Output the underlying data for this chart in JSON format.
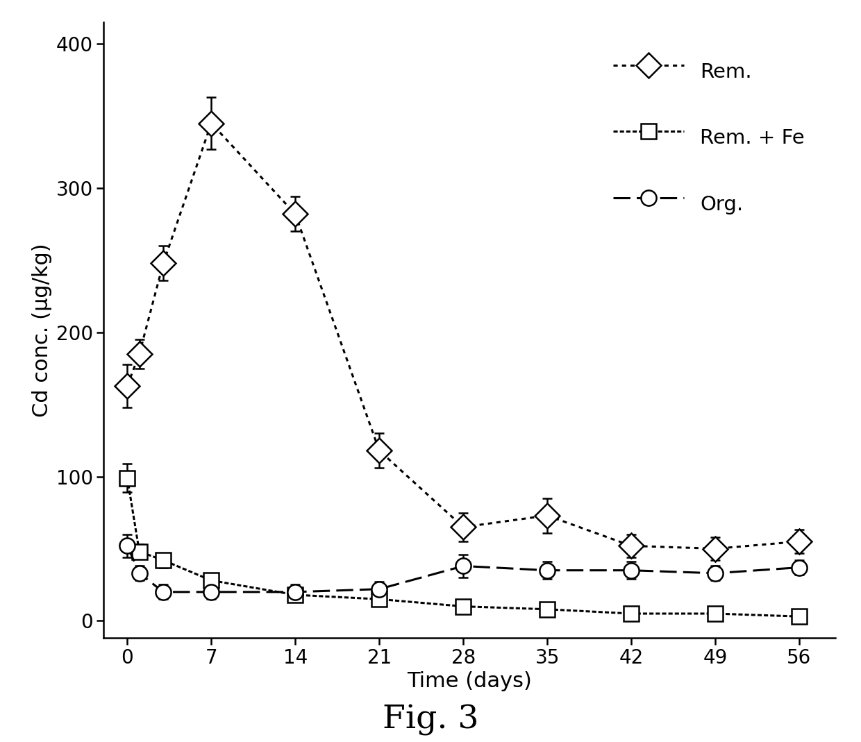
{
  "title": "Fig. 3",
  "xlabel": "Time (days)",
  "ylabel": "Cd conc. (μg/kg)",
  "xlim": [
    -2,
    59
  ],
  "ylim": [
    -12,
    415
  ],
  "yticks": [
    0,
    100,
    200,
    300,
    400
  ],
  "xticks": [
    0,
    7,
    14,
    21,
    28,
    35,
    42,
    49,
    56
  ],
  "rem_x": [
    0,
    1,
    3,
    7,
    14,
    21,
    28,
    35,
    42,
    49,
    56
  ],
  "rem_y": [
    163,
    185,
    248,
    345,
    282,
    118,
    65,
    73,
    52,
    50,
    55
  ],
  "rem_yerr": [
    15,
    10,
    12,
    18,
    12,
    12,
    10,
    12,
    8,
    8,
    8
  ],
  "remfe_x": [
    0,
    1,
    3,
    7,
    14,
    21,
    28,
    35,
    42,
    49,
    56
  ],
  "remfe_y": [
    99,
    48,
    42,
    28,
    18,
    15,
    10,
    8,
    5,
    5,
    3
  ],
  "remfe_yerr": [
    10,
    5,
    5,
    5,
    4,
    3,
    3,
    3,
    2,
    2,
    2
  ],
  "org_x": [
    0,
    1,
    3,
    7,
    14,
    21,
    28,
    35,
    42,
    49,
    56
  ],
  "org_y": [
    52,
    33,
    20,
    20,
    20,
    22,
    38,
    35,
    35,
    33,
    37
  ],
  "org_yerr": [
    8,
    5,
    5,
    5,
    5,
    5,
    8,
    6,
    6,
    5,
    5
  ],
  "color": "#000000",
  "bg_color": "#ffffff",
  "legend_labels": [
    "Rem.",
    "Rem. + Fe",
    "Org."
  ],
  "title_fontsize": 34,
  "axis_label_fontsize": 22,
  "tick_fontsize": 20,
  "legend_fontsize": 21
}
